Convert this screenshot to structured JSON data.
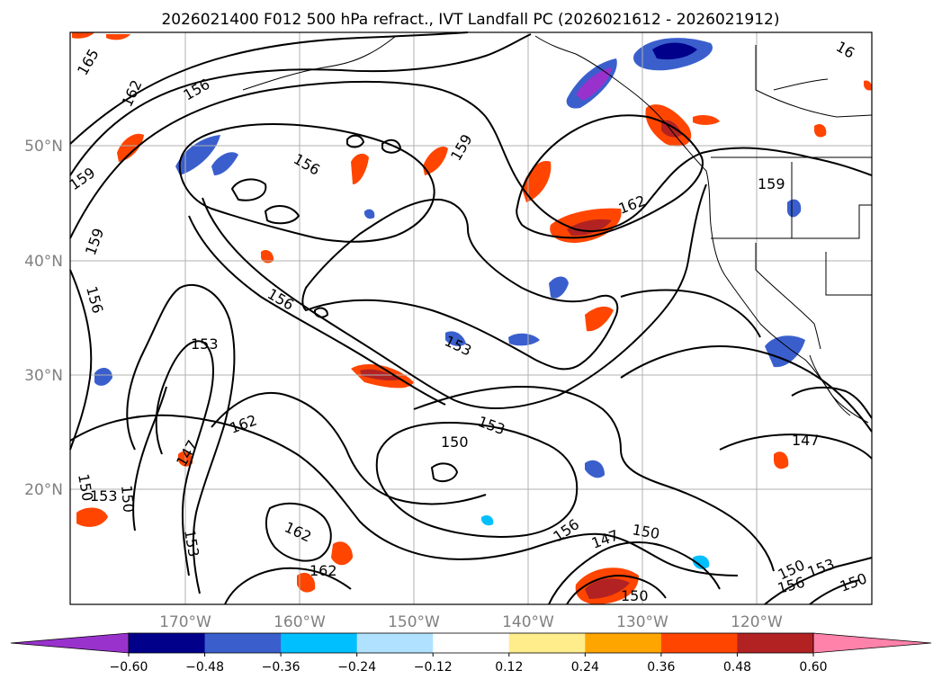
{
  "title": "2026021400 F012 500 hPa refract., IVT Landfall PC (2026021612 - 2026021912)",
  "axes": {
    "lat_labels": [
      "50°N",
      "40°N",
      "30°N",
      "20°N"
    ],
    "lon_labels": [
      "170°W",
      "160°W",
      "150°W",
      "140°W",
      "130°W",
      "120°W"
    ]
  },
  "contour_labels": [
    "165",
    "162",
    "156",
    "159",
    "156",
    "159",
    "159",
    "156",
    "153",
    "156",
    "153",
    "162",
    "147",
    "150",
    "153",
    "150",
    "153",
    "162",
    "162",
    "156",
    "150",
    "147",
    "150",
    "153",
    "147",
    "150",
    "156",
    "153",
    "150",
    "162",
    "159",
    "16",
    "150"
  ],
  "colorbar": {
    "ticks": [
      "−0.60",
      "−0.48",
      "−0.36",
      "−0.24",
      "−0.12",
      "0.12",
      "0.24",
      "0.36",
      "0.48",
      "0.60"
    ],
    "colors": [
      "#9932cc",
      "#00008b",
      "#3a5fcd",
      "#00bfff",
      "#b0e2ff",
      "#ffffff",
      "#ffec8b",
      "#ffa500",
      "#ff4500",
      "#b22222",
      "#ff82ab"
    ]
  },
  "colors": {
    "contour": "#000000",
    "grid": "#b0b0b0",
    "axis_label": "#808080"
  }
}
